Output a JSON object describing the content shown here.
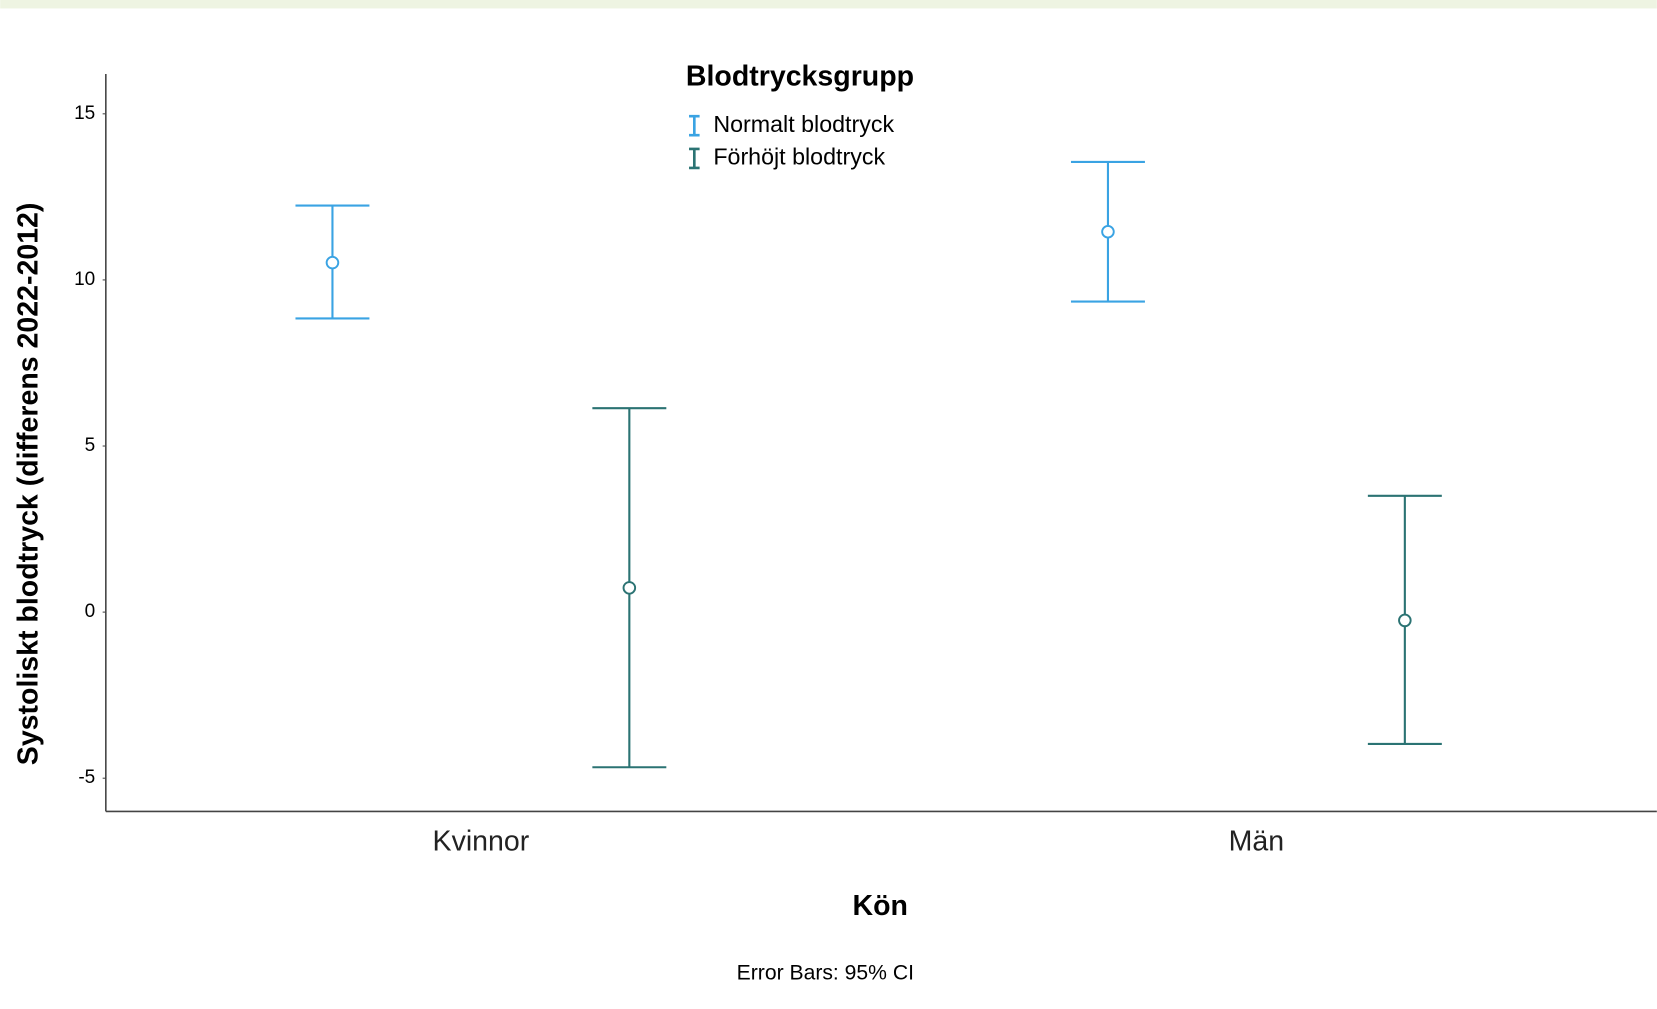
{
  "chart_data": {
    "type": "errorbar",
    "legend_title": "Blodtrycksgrupp",
    "x_label": "Kön",
    "y_label": "Systoliskt blodtryck (differens 2022-2012)",
    "footnote": "Error Bars: 95% CI",
    "categories": [
      "Kvinnor",
      "Män"
    ],
    "series": [
      {
        "name": "Normalt blodtryck",
        "color": "#3aa3e3",
        "values": [
          10.52,
          11.45
        ],
        "lower": [
          8.84,
          9.35
        ],
        "upper": [
          12.24,
          13.55
        ]
      },
      {
        "name": "Förhöjt blodtryck",
        "color": "#2b7373",
        "values": [
          0.73,
          -0.25
        ],
        "lower": [
          -4.67,
          -3.97
        ],
        "upper": [
          6.14,
          3.5
        ]
      }
    ],
    "ylim": [
      -6,
      16.2
    ],
    "yticks": [
      15,
      10,
      5,
      0,
      -5
    ],
    "grid": false,
    "legend": "top"
  }
}
